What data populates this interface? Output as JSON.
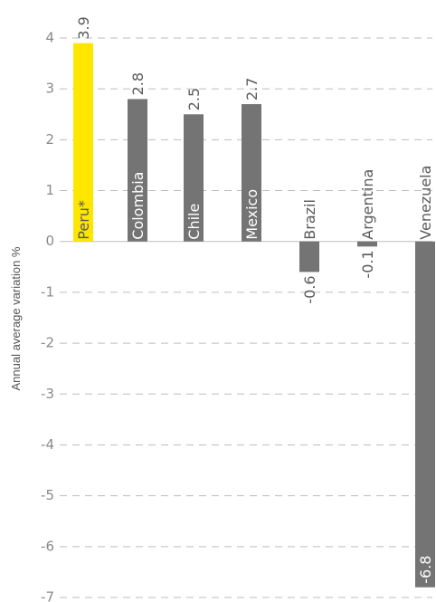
{
  "chart_data": {
    "type": "bar",
    "title": "",
    "xlabel": "",
    "ylabel": "Annual average variation %",
    "ylim": [
      -7,
      4
    ],
    "yticks": [
      4,
      3,
      2,
      1,
      0,
      -1,
      -2,
      -3,
      -4,
      -5,
      -6,
      -7
    ],
    "grid": true,
    "categories": [
      "Peru*",
      "Colombia",
      "Chile",
      "Mexico",
      "Brazil",
      "Argentina",
      "Venezuela"
    ],
    "values": [
      3.9,
      2.8,
      2.5,
      2.7,
      -0.6,
      -0.1,
      -6.8
    ],
    "value_labels": [
      "3.9",
      "2.8",
      "2.5",
      "2.7",
      "-0.6",
      "-0.1",
      "-6.8"
    ],
    "colors": [
      "#ffe600",
      "#747474",
      "#747474",
      "#747474",
      "#747474",
      "#747474",
      "#747474"
    ],
    "highlight_color": "#ffe600",
    "bar_color": "#747474"
  }
}
